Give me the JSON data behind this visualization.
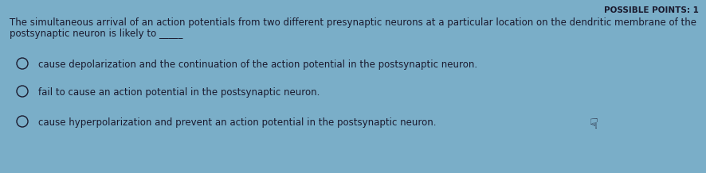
{
  "background_color": "#7aaec8",
  "possible_points_text": "POSSIBLE POINTS: 1",
  "possible_points_fontsize": 7.5,
  "possible_points_color": "#1a1a2e",
  "question_line1": "The simultaneous arrival of an action potentials from two different presynaptic neurons at a particular location on the dendritic membrane of the",
  "question_line2": "postsynaptic neuron is likely to _____",
  "question_fontsize": 8.5,
  "question_color": "#1a1a2e",
  "options": [
    "cause depolarization and the continuation of the action potential in the postsynaptic neuron.",
    "fail to cause an action potential in the postsynaptic neuron.",
    "cause hyperpolarization and prevent an action potential in the postsynaptic neuron."
  ],
  "option_fontsize": 8.5,
  "option_color": "#1a1a2e",
  "circle_color": "#1a1a2e",
  "circle_linewidth": 1.0,
  "hand_cursor": "☝",
  "hand_fontsize": 13
}
